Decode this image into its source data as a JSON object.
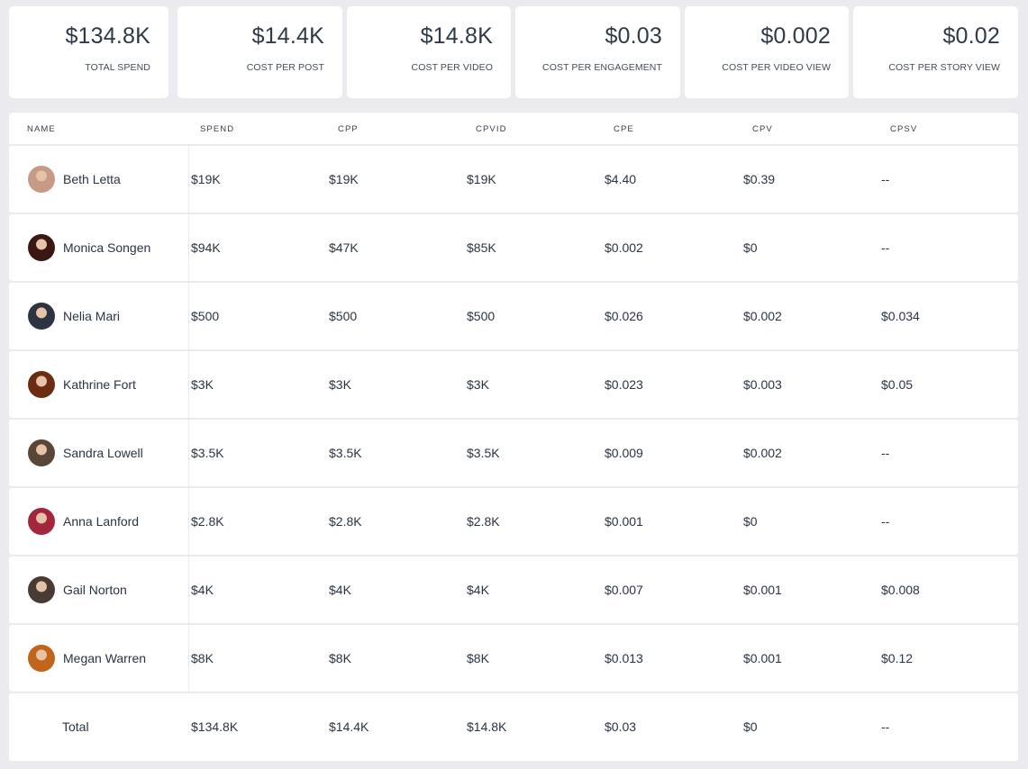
{
  "summary_cards": [
    {
      "value": "$134.8K",
      "label": "TOTAL SPEND"
    },
    {
      "value": "$14.4K",
      "label": "COST PER POST"
    },
    {
      "value": "$14.8K",
      "label": "COST PER VIDEO"
    },
    {
      "value": "$0.03",
      "label": "COST PER ENGAGEMENT"
    },
    {
      "value": "$0.002",
      "label": "COST PER VIDEO VIEW"
    },
    {
      "value": "$0.02",
      "label": "COST PER STORY VIEW"
    }
  ],
  "table": {
    "columns": [
      "NAME",
      "SPEND",
      "CPP",
      "CPVID",
      "CPE",
      "CPV",
      "CPSV"
    ],
    "rows": [
      {
        "name": "Beth Letta",
        "spend": "$19K",
        "cpp": "$19K",
        "cpvid": "$19K",
        "cpe": "$4.40",
        "cpv": "$0.39",
        "cpsv": "--",
        "avatar_color": "#c79a86"
      },
      {
        "name": "Monica Songen",
        "spend": "$94K",
        "cpp": "$47K",
        "cpvid": "$85K",
        "cpe": "$0.002",
        "cpv": "$0",
        "cpsv": "--",
        "avatar_color": "#3a1712"
      },
      {
        "name": "Nelia Mari",
        "spend": "$500",
        "cpp": "$500",
        "cpvid": "$500",
        "cpe": "$0.026",
        "cpv": "$0.002",
        "cpsv": "$0.034",
        "avatar_color": "#2c3442"
      },
      {
        "name": "Kathrine Fort",
        "spend": "$3K",
        "cpp": "$3K",
        "cpvid": "$3K",
        "cpe": "$0.023",
        "cpv": "$0.003",
        "cpsv": "$0.05",
        "avatar_color": "#6b2d12"
      },
      {
        "name": "Sandra Lowell",
        "spend": "$3.5K",
        "cpp": "$3.5K",
        "cpvid": "$3.5K",
        "cpe": "$0.009",
        "cpv": "$0.002",
        "cpsv": "--",
        "avatar_color": "#5a4636"
      },
      {
        "name": "Anna Lanford",
        "spend": "$2.8K",
        "cpp": "$2.8K",
        "cpvid": "$2.8K",
        "cpe": "$0.001",
        "cpv": "$0",
        "cpsv": "--",
        "avatar_color": "#a3263c"
      },
      {
        "name": "Gail Norton",
        "spend": "$4K",
        "cpp": "$4K",
        "cpvid": "$4K",
        "cpe": "$0.007",
        "cpv": "$0.001",
        "cpsv": "$0.008",
        "avatar_color": "#4a3a34"
      },
      {
        "name": "Megan Warren",
        "spend": "$8K",
        "cpp": "$8K",
        "cpvid": "$8K",
        "cpe": "$0.013",
        "cpv": "$0.001",
        "cpsv": "$0.12",
        "avatar_color": "#c2651c"
      }
    ],
    "total": {
      "name": "Total",
      "spend": "$134.8K",
      "cpp": "$14.4K",
      "cpvid": "$14.8K",
      "cpe": "$0.03",
      "cpv": "$0",
      "cpsv": "--"
    }
  }
}
